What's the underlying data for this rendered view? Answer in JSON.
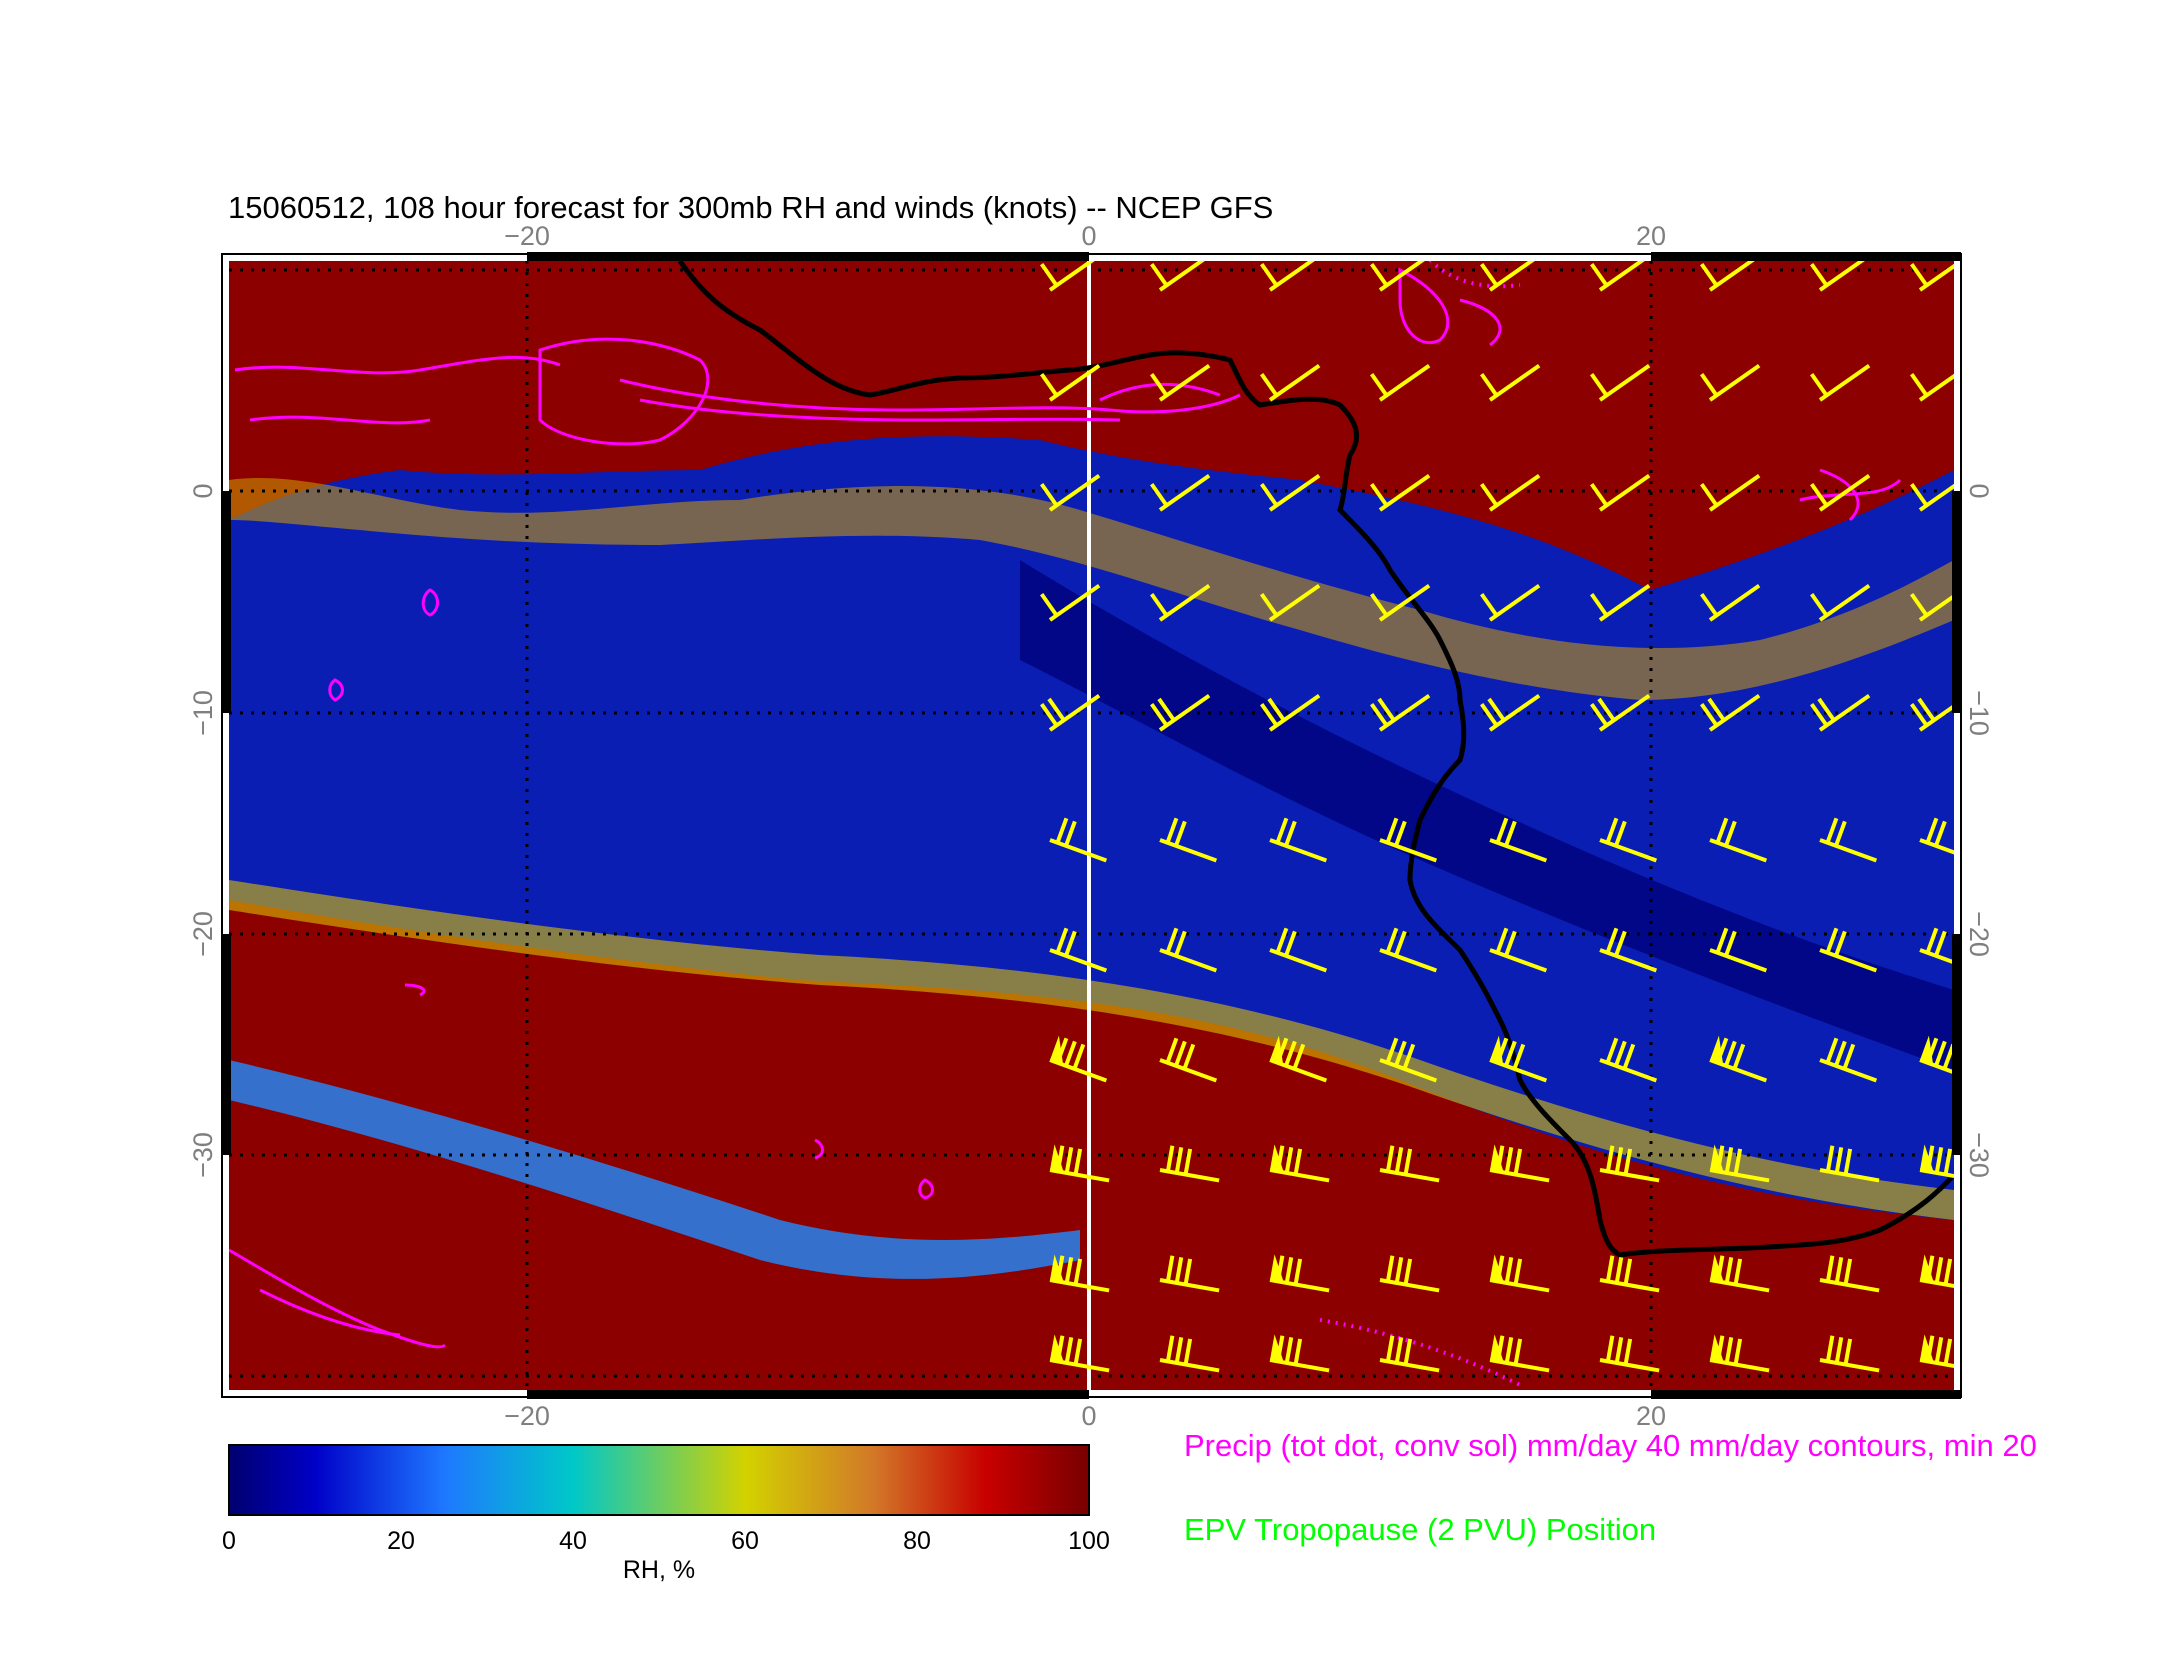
{
  "title": "15060512, 108 hour forecast for 300mb RH and winds (knots) -- NCEP GFS",
  "map": {
    "lon_range": [
      -31,
      31
    ],
    "lat_range": [
      -40,
      11
    ],
    "lon_ticks": [
      {
        "value": -20,
        "label": "−20"
      },
      {
        "value": 0,
        "label": "0"
      },
      {
        "value": 20,
        "label": "20"
      }
    ],
    "lat_ticks": [
      {
        "value": 0,
        "label": "0"
      },
      {
        "value": -10,
        "label": "−10"
      },
      {
        "value": -20,
        "label": "−20"
      },
      {
        "value": -30,
        "label": "−30"
      }
    ],
    "grid": "dotted",
    "coastline_color": "#000000",
    "barb_color": "#ffff00",
    "precip_color": "#ff00ff"
  },
  "colorbar": {
    "label": "RH, %",
    "ticks": [
      "0",
      "20",
      "40",
      "60",
      "80",
      "100"
    ],
    "colors": [
      "#00008b",
      "#0000cd",
      "#1e6fff",
      "#00c8c8",
      "#c8c800",
      "#d2691e",
      "#c80000",
      "#780000"
    ]
  },
  "legend": {
    "precip": "Precip (tot dot, conv sol) mm/day 40 mm/day contours, min 20",
    "epv": "EPV Tropopause (2 PVU) Position"
  }
}
